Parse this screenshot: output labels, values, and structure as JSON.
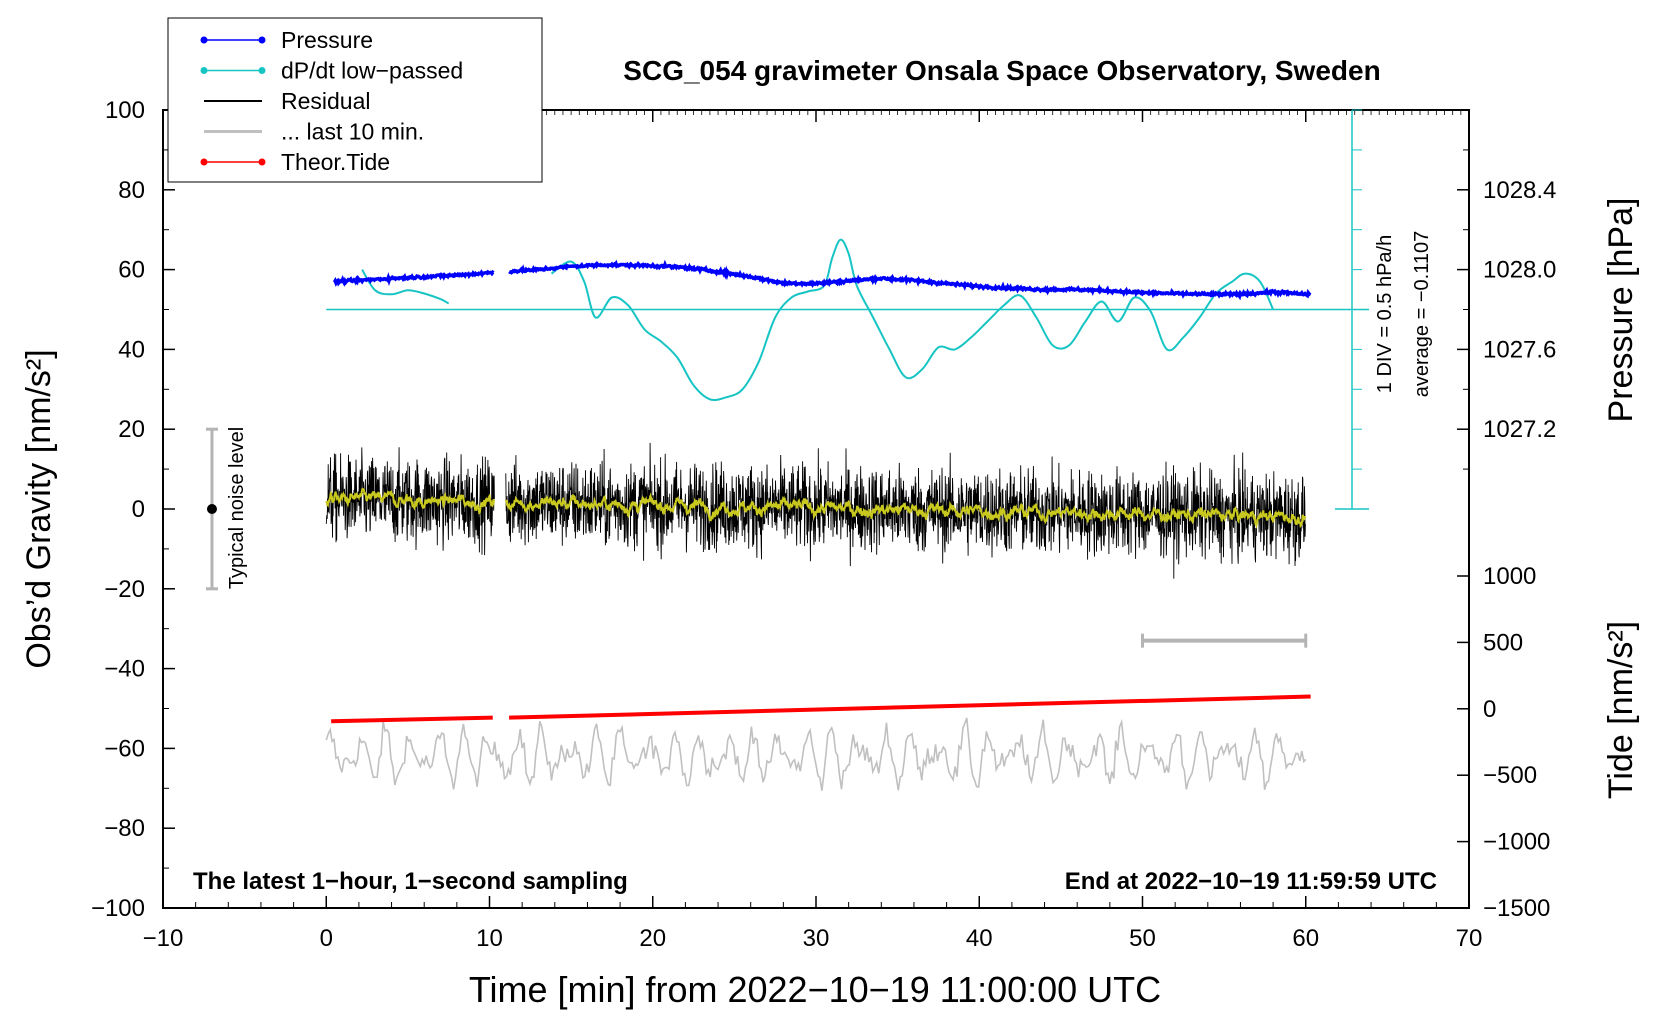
{
  "chart_data": {
    "type": "line",
    "title": "SCG_054 gravimeter Onsala Space Observatory, Sweden",
    "xlabel": "Time [min] from 2022−10−19 11:00:00 UTC",
    "ylabel_left": "Obs’d Gravity [nm/s²]",
    "ylabel_right_top": "Pressure [hPa]",
    "ylabel_right_bottom": "Tide [nm/s²]",
    "xlim": [
      -10,
      70
    ],
    "ylim": [
      -100,
      100
    ],
    "x_ticks": [
      "−10",
      "0",
      "10",
      "20",
      "30",
      "40",
      "50",
      "60",
      "70"
    ],
    "y_ticks": [
      "100",
      "80",
      "60",
      "40",
      "20",
      "0",
      "−20",
      "−40",
      "−60",
      "−80",
      "−100"
    ],
    "pressure_ticks": [
      "1028.4",
      "1028.0",
      "1027.6",
      "1027.2"
    ],
    "tide_ticks": [
      "1000",
      "500",
      "0",
      "−500",
      "−1000",
      "−1500"
    ],
    "footer_left": "The latest 1−hour, 1−second sampling",
    "footer_right": "End at 2022−10−19 11:59:59 UTC",
    "noise_label": "Typical noise level",
    "noise_range": [
      -20,
      20
    ],
    "dpdt_scale_label": "1 DIV = 0.5 hPa/h",
    "dpdt_average_label": "average = −0.1107",
    "dpdt_zero_level": 50,
    "last10_range": [
      50,
      60
    ],
    "last10_level": -33,
    "legend": [
      {
        "label": "Pressure",
        "color": "#0000ff",
        "marker": true
      },
      {
        "label": "dP/dt low−passed",
        "color": "#17c4c4",
        "marker": true
      },
      {
        "label": "Residual",
        "color": "#000000",
        "marker": false
      },
      {
        "label": "... last 10 min.",
        "color": "#c0c0c0",
        "marker": false
      },
      {
        "label": "Theor.Tide",
        "color": "#ff0000",
        "marker": true
      }
    ],
    "series": [
      {
        "name": "Pressure",
        "color": "#0000ff",
        "x": [
          0,
          2,
          4,
          6,
          8,
          10,
          11,
          13,
          15,
          17,
          20,
          22,
          24,
          26,
          28,
          30,
          32,
          34,
          36,
          38,
          40,
          42,
          44,
          46,
          48,
          50,
          52,
          54,
          56,
          58,
          60
        ],
        "y": [
          56.8,
          57.3,
          57.8,
          58.2,
          58.6,
          59.2,
          59.5,
          60.0,
          60.8,
          61.2,
          61.0,
          60.5,
          59.5,
          58.2,
          56.6,
          56.5,
          57.2,
          57.8,
          57.3,
          56.5,
          55.8,
          55.3,
          55.0,
          55.0,
          54.7,
          54.2,
          54.0,
          53.8,
          53.8,
          54.4,
          53.8
        ]
      },
      {
        "name": "dP/dt low-passed",
        "color": "#17c4c4",
        "segments": [
          {
            "x": [
              2.2,
              3.0,
              4.0,
              5.0,
              6.0,
              7.0,
              7.5
            ],
            "y": [
              60.0,
              54.8,
              53.8,
              54.8,
              54.0,
              52.6,
              51.5
            ]
          },
          {
            "x": [
              13.8,
              15.0,
              15.8,
              16.5,
              17.5,
              18.5,
              19.5,
              20.5,
              21.5,
              22.5,
              23.5,
              24.5,
              25.5,
              26.5,
              27.5,
              28.5,
              29.5,
              30.5,
              31.0,
              31.5,
              32.0,
              32.5,
              33.5,
              34.5,
              35.5,
              36.5,
              37.5,
              38.5,
              39.5,
              40.5,
              41.5,
              42.5,
              43.5,
              44.5,
              45.5,
              46.5,
              47.5,
              48.5,
              49.5,
              50.5,
              51.5,
              52.5,
              53.5,
              54.5,
              55.5,
              56.3,
              57.2,
              58.0
            ],
            "y": [
              59.0,
              62.0,
              57.0,
              48.0,
              53.0,
              51.0,
              45.0,
              42.0,
              38.0,
              31.0,
              27.5,
              28.0,
              30.0,
              37.0,
              48.0,
              53.0,
              54.5,
              56.0,
              63.0,
              67.5,
              64.0,
              56.0,
              48.0,
              40.0,
              33.0,
              35.0,
              40.5,
              40.0,
              43.0,
              47.0,
              51.0,
              53.5,
              48.0,
              41.0,
              41.0,
              47.0,
              52.0,
              47.0,
              53.0,
              49.5,
              40.0,
              43.0,
              48.0,
              54.0,
              57.0,
              59.0,
              57.0,
              50.0
            ]
          }
        ]
      },
      {
        "name": "Theor.Tide",
        "color": "#ff0000",
        "segments": [
          {
            "x": [
              0.3,
              10.2
            ],
            "y": [
              -53.2,
              -52.3
            ]
          },
          {
            "x": [
              11.2,
              60.3
            ],
            "y": [
              -52.3,
              -47.0
            ]
          }
        ]
      },
      {
        "name": "Residual",
        "color": "#000000",
        "kind": "noise",
        "center": [
          2.5,
          -2.0
        ],
        "amplitude": 12,
        "gap": [
          10.3,
          11.0
        ],
        "xrange": [
          0,
          60
        ]
      },
      {
        "name": "Residual smoothed",
        "color": "#c8c81e",
        "kind": "noise",
        "amplitude": 2,
        "xrange": [
          0,
          60
        ]
      },
      {
        "name": "... last 10 min.",
        "color": "#c0c0c0",
        "kind": "oscillation",
        "center": -62,
        "amplitude": 7,
        "xrange": [
          0,
          60
        ]
      }
    ]
  }
}
